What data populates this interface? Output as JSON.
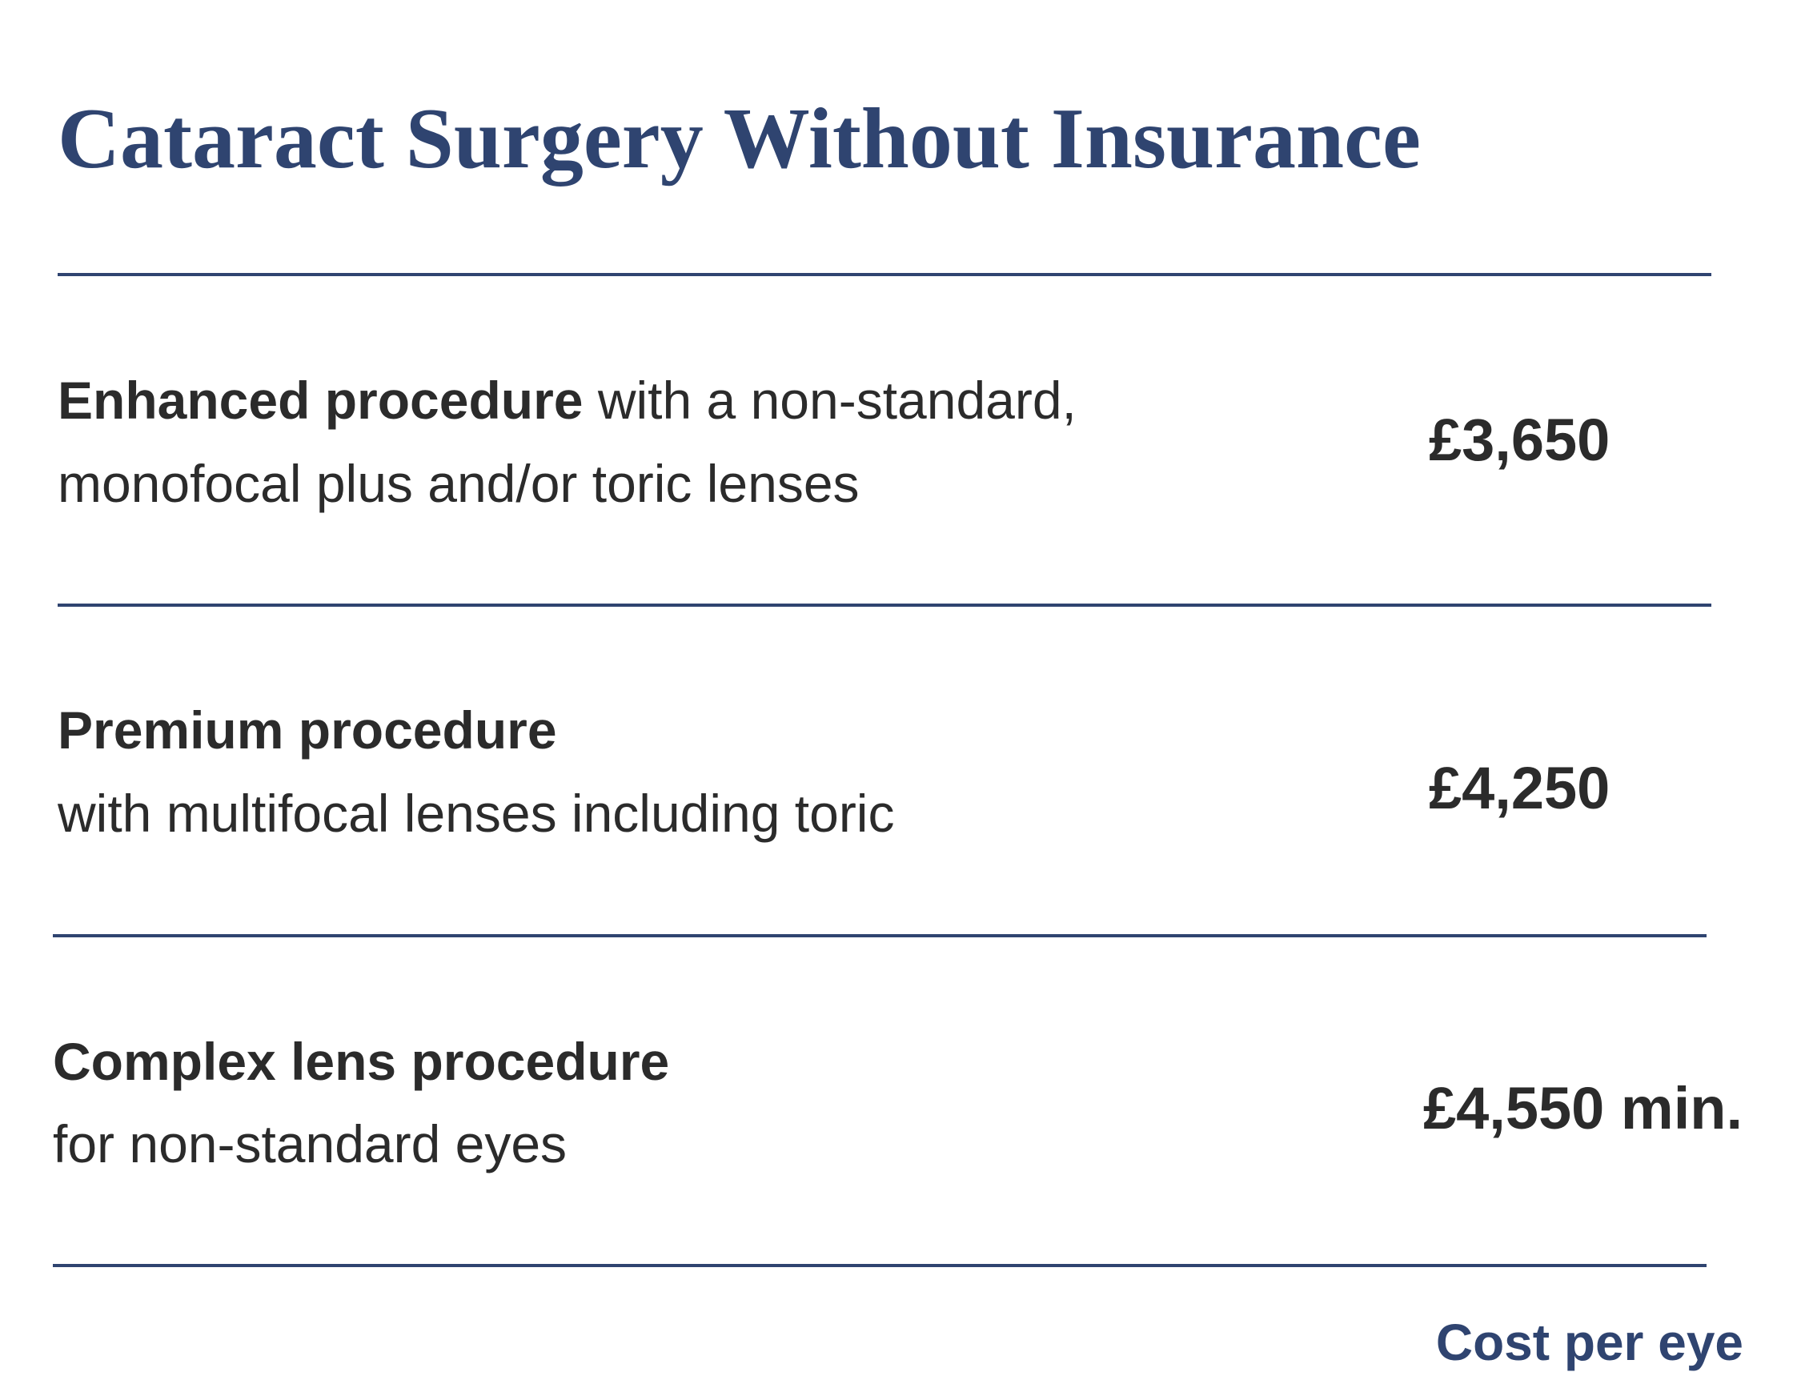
{
  "header": {
    "title": "Cataract Surgery Without Insurance"
  },
  "rows": [
    {
      "name": "Enhanced procedure",
      "description": [
        "with a non-standard,",
        "monofocal plus and/or toric lenses"
      ],
      "price": "£3,650"
    },
    {
      "name": "Premium procedure",
      "description": [
        "with multifocal lenses including toric"
      ],
      "price": "£4,250"
    },
    {
      "name": "Complex lens procedure",
      "description": [
        "for non-standard eyes"
      ],
      "price": "£4,550 min."
    }
  ],
  "footer": {
    "note": "Cost per eye"
  }
}
